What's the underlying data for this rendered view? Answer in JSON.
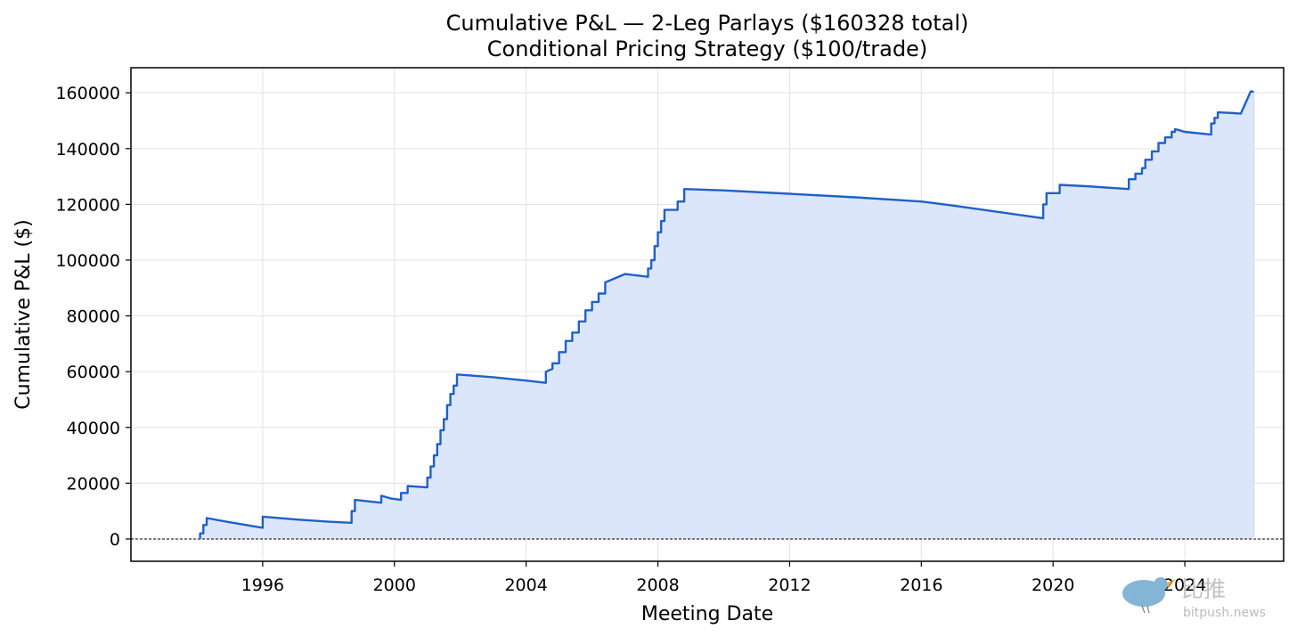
{
  "chart_data": {
    "type": "area",
    "title": "Cumulative P&L — 2-Leg Parlays ($160328 total)",
    "subtitle": "Conditional Pricing Strategy ($100/trade)",
    "xlabel": "Meeting Date",
    "ylabel": "Cumulative P&L ($)",
    "xlim": [
      1992.0,
      2027.0
    ],
    "ylim": [
      -8000,
      169000
    ],
    "x_ticks": [
      1996,
      2000,
      2004,
      2008,
      2012,
      2016,
      2020,
      2024
    ],
    "y_ticks": [
      0,
      20000,
      40000,
      60000,
      80000,
      100000,
      120000,
      140000,
      160000
    ],
    "grid": true,
    "zero_line": true,
    "line_color": "#2060c8",
    "fill_color": "#dce6fa",
    "series": [
      {
        "x": [
          1994.1,
          1994.1,
          1994.2,
          1994.2,
          1994.3,
          1994.3,
          1995.0,
          1996.0,
          1996.0,
          1997.0,
          1998.0,
          1998.7,
          1998.7,
          1998.8,
          1998.8,
          1999.6,
          1999.6,
          1999.9,
          2000.2,
          2000.2,
          2000.4,
          2000.4,
          2001.0,
          2001.0,
          2001.1,
          2001.1,
          2001.2,
          2001.2,
          2001.3,
          2001.3,
          2001.4,
          2001.4,
          2001.5,
          2001.5,
          2001.6,
          2001.6,
          2001.7,
          2001.7,
          2001.8,
          2001.8,
          2001.9,
          2001.9,
          2003.0,
          2004.0,
          2004.6,
          2004.6,
          2004.8,
          2004.8,
          2005.0,
          2005.0,
          2005.2,
          2005.2,
          2005.4,
          2005.4,
          2005.6,
          2005.6,
          2005.8,
          2005.8,
          2006.0,
          2006.0,
          2006.2,
          2006.2,
          2006.4,
          2006.4,
          2007.0,
          2007.7,
          2007.7,
          2007.8,
          2007.8,
          2007.9,
          2007.9,
          2008.0,
          2008.0,
          2008.1,
          2008.1,
          2008.2,
          2008.2,
          2008.6,
          2008.6,
          2008.8,
          2008.8,
          2010.0,
          2012.0,
          2014.0,
          2016.0,
          2017.0,
          2019.7,
          2019.7,
          2019.8,
          2019.8,
          2020.2,
          2020.2,
          2021.0,
          2022.3,
          2022.3,
          2022.5,
          2022.5,
          2022.7,
          2022.7,
          2022.8,
          2022.8,
          2023.0,
          2023.0,
          2023.2,
          2023.2,
          2023.4,
          2023.4,
          2023.6,
          2023.6,
          2023.7,
          2023.7,
          2024.0,
          2024.8,
          2024.8,
          2024.9,
          2024.9,
          2025.0,
          2025.0,
          2025.5,
          2025.7,
          2026.0,
          2026.1
        ],
        "y": [
          0,
          2000,
          2000,
          5000,
          5000,
          7500,
          6000,
          4000,
          8000,
          7000,
          6200,
          5800,
          10000,
          10000,
          14000,
          13000,
          15500,
          14500,
          14000,
          16500,
          16500,
          19000,
          18500,
          22000,
          22000,
          26000,
          26000,
          30000,
          30000,
          34000,
          34000,
          39000,
          39000,
          43000,
          43000,
          48000,
          48000,
          52000,
          52000,
          55000,
          55000,
          59000,
          58000,
          56800,
          56000,
          60000,
          61000,
          63000,
          63000,
          67000,
          67000,
          71000,
          71000,
          74000,
          74000,
          78000,
          78000,
          82000,
          82000,
          85000,
          85000,
          88000,
          88000,
          92000,
          95000,
          94000,
          97000,
          97000,
          100000,
          100000,
          105000,
          105000,
          110000,
          110000,
          114000,
          114000,
          118000,
          118000,
          121000,
          121000,
          125500,
          125000,
          123800,
          122500,
          121000,
          119500,
          115000,
          120000,
          120000,
          124000,
          124000,
          127000,
          126500,
          125500,
          129000,
          129000,
          131000,
          131000,
          133000,
          133000,
          136000,
          136000,
          139000,
          139000,
          142000,
          142000,
          144000,
          144000,
          146000,
          146000,
          147000,
          146000,
          145000,
          149000,
          149000,
          151000,
          151000,
          153000,
          152700,
          152500,
          160500,
          160328
        ]
      }
    ]
  },
  "watermark": {
    "brand": "比推",
    "site": "bitpush.news"
  }
}
